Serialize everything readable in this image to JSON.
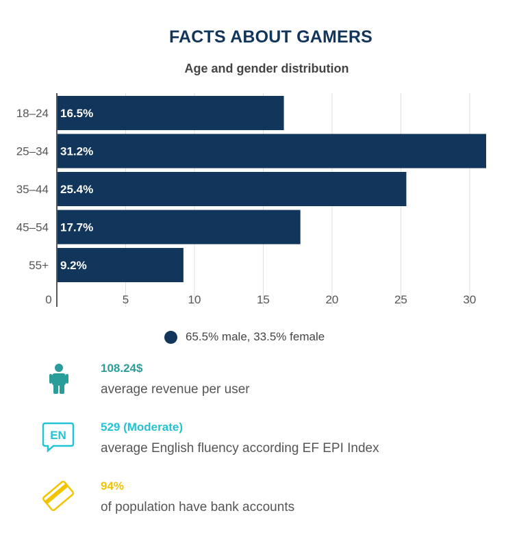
{
  "header": {
    "title": "FACTS ABOUT GAMERS",
    "subtitle": "Age and gender distribution"
  },
  "chart_data": {
    "type": "bar",
    "orientation": "horizontal",
    "categories": [
      "18–24",
      "25–34",
      "35–44",
      "45–54",
      "55+"
    ],
    "values": [
      16.5,
      31.2,
      25.4,
      17.7,
      9.2
    ],
    "value_labels": [
      "16.5%",
      "31.2%",
      "25.4%",
      "17.7%",
      "9.2%"
    ],
    "xlim": [
      0,
      31.2
    ],
    "x_ticks": [
      0,
      5,
      10,
      15,
      20,
      25,
      30
    ],
    "grid": true,
    "legend_placement": "bottom",
    "series": [
      {
        "name": "65.5% male, 33.5% female",
        "values": [
          16.5,
          31.2,
          25.4,
          17.7,
          9.2
        ]
      }
    ],
    "bar_color": "#12355b"
  },
  "legend": {
    "label": "65.5% male, 33.5% female"
  },
  "facts": [
    {
      "icon": "person-icon",
      "value": "108.24$",
      "description": "average revenue per user",
      "color": "#2a9d9b"
    },
    {
      "icon": "language-en-icon",
      "value": "529 (Moderate)",
      "description": "average English fluency according  EF EPI Index",
      "color": "#22c3d3"
    },
    {
      "icon": "credit-card-icon",
      "value": "94%",
      "description": "of population have bank accounts",
      "color": "#f2c400"
    }
  ]
}
